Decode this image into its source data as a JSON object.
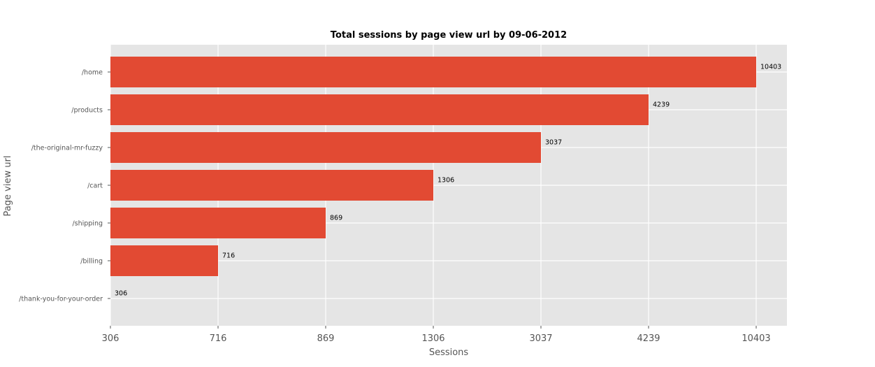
{
  "chart_data": {
    "type": "bar",
    "orientation": "horizontal",
    "title": "Total sessions by page view url by 09-06-2012",
    "xlabel": "Sessions",
    "ylabel": "Page view url",
    "categories": [
      "/home",
      "/products",
      "/the-original-mr-fuzzy",
      "/cart",
      "/shipping",
      "/billing",
      "/thank-you-for-your-order"
    ],
    "values": [
      10403,
      4239,
      3037,
      1306,
      869,
      716,
      306
    ],
    "x_tick_labels": [
      "306",
      "716",
      "869",
      "1306",
      "3037",
      "4239",
      "10403"
    ],
    "x_scale": "categorical-rank",
    "grid": true,
    "bar_color": "#E24A33",
    "plot_background": "#E5E5E5"
  }
}
